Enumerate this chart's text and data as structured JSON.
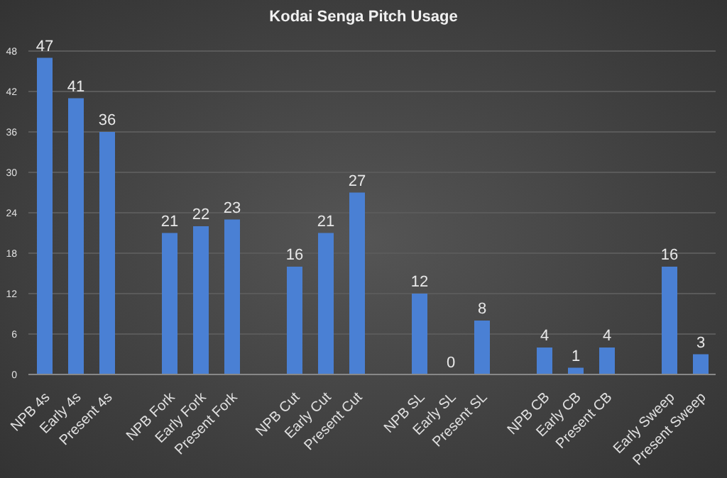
{
  "chart_data": {
    "type": "bar",
    "title": "Kodai Senga Pitch Usage",
    "categories": [
      "NPB 4s",
      "Early 4s",
      "Present 4s",
      null,
      "NPB Fork",
      "Early Fork",
      "Present Fork",
      null,
      "NPB Cut",
      "Early Cut",
      "Present Cut",
      null,
      "NPB SL",
      "Early SL",
      "Present SL",
      null,
      "NPB CB",
      "Early CB",
      "Present CB",
      null,
      "Early Sweep",
      "Present Sweep"
    ],
    "values": [
      47,
      41,
      36,
      null,
      21,
      22,
      23,
      null,
      16,
      21,
      27,
      null,
      12,
      0,
      8,
      null,
      4,
      1,
      4,
      null,
      16,
      3
    ],
    "color": "#4a80d4",
    "ylim": [
      0,
      48
    ],
    "yticks": [
      0,
      6,
      12,
      18,
      24,
      30,
      36,
      42,
      48
    ],
    "grid": "y",
    "data_labels": true
  }
}
